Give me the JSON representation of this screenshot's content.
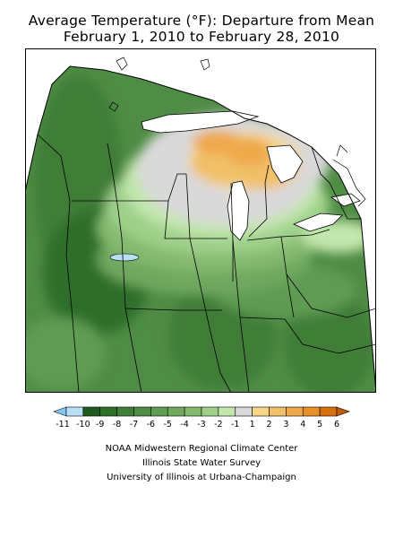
{
  "title": {
    "line1": "Average Temperature (°F): Departure from Mean",
    "line2": "February 1, 2010 to February 28, 2010"
  },
  "legend": {
    "labels": [
      "-11",
      "-10",
      "-9",
      "-8",
      "-7",
      "-6",
      "-5",
      "-4",
      "-3",
      "-2",
      "-1",
      "1",
      "2",
      "3",
      "4",
      "5",
      "6"
    ],
    "colors": [
      "#7fc7f2",
      "#b9dff5",
      "#1e5a1e",
      "#2f6f2a",
      "#3f7e37",
      "#4f8c45",
      "#5f9b52",
      "#70a85f",
      "#84b96f",
      "#9fd08a",
      "#c2e6ad",
      "#d9d9d9",
      "#f5d68a",
      "#f1c069",
      "#eea94a",
      "#e8902a",
      "#d9700f",
      "#c15a00"
    ]
  },
  "map": {
    "departure_colors": {
      "deep": "#2e6e2a",
      "dark": "#3f7e37",
      "mid": "#5f9b52",
      "light": "#84b96f",
      "pale": "#9fd08a",
      "palest": "#c2e6ad",
      "neutral": "#d9d9d9",
      "warm1": "#f5d68a",
      "warm2": "#f1c069",
      "warm3": "#eea94a"
    }
  },
  "credits": {
    "line1": "NOAA Midwestern Regional Climate Center",
    "line2": "Illinois State Water Survey",
    "line3": "University of Illinois at Urbana-Champaign"
  }
}
